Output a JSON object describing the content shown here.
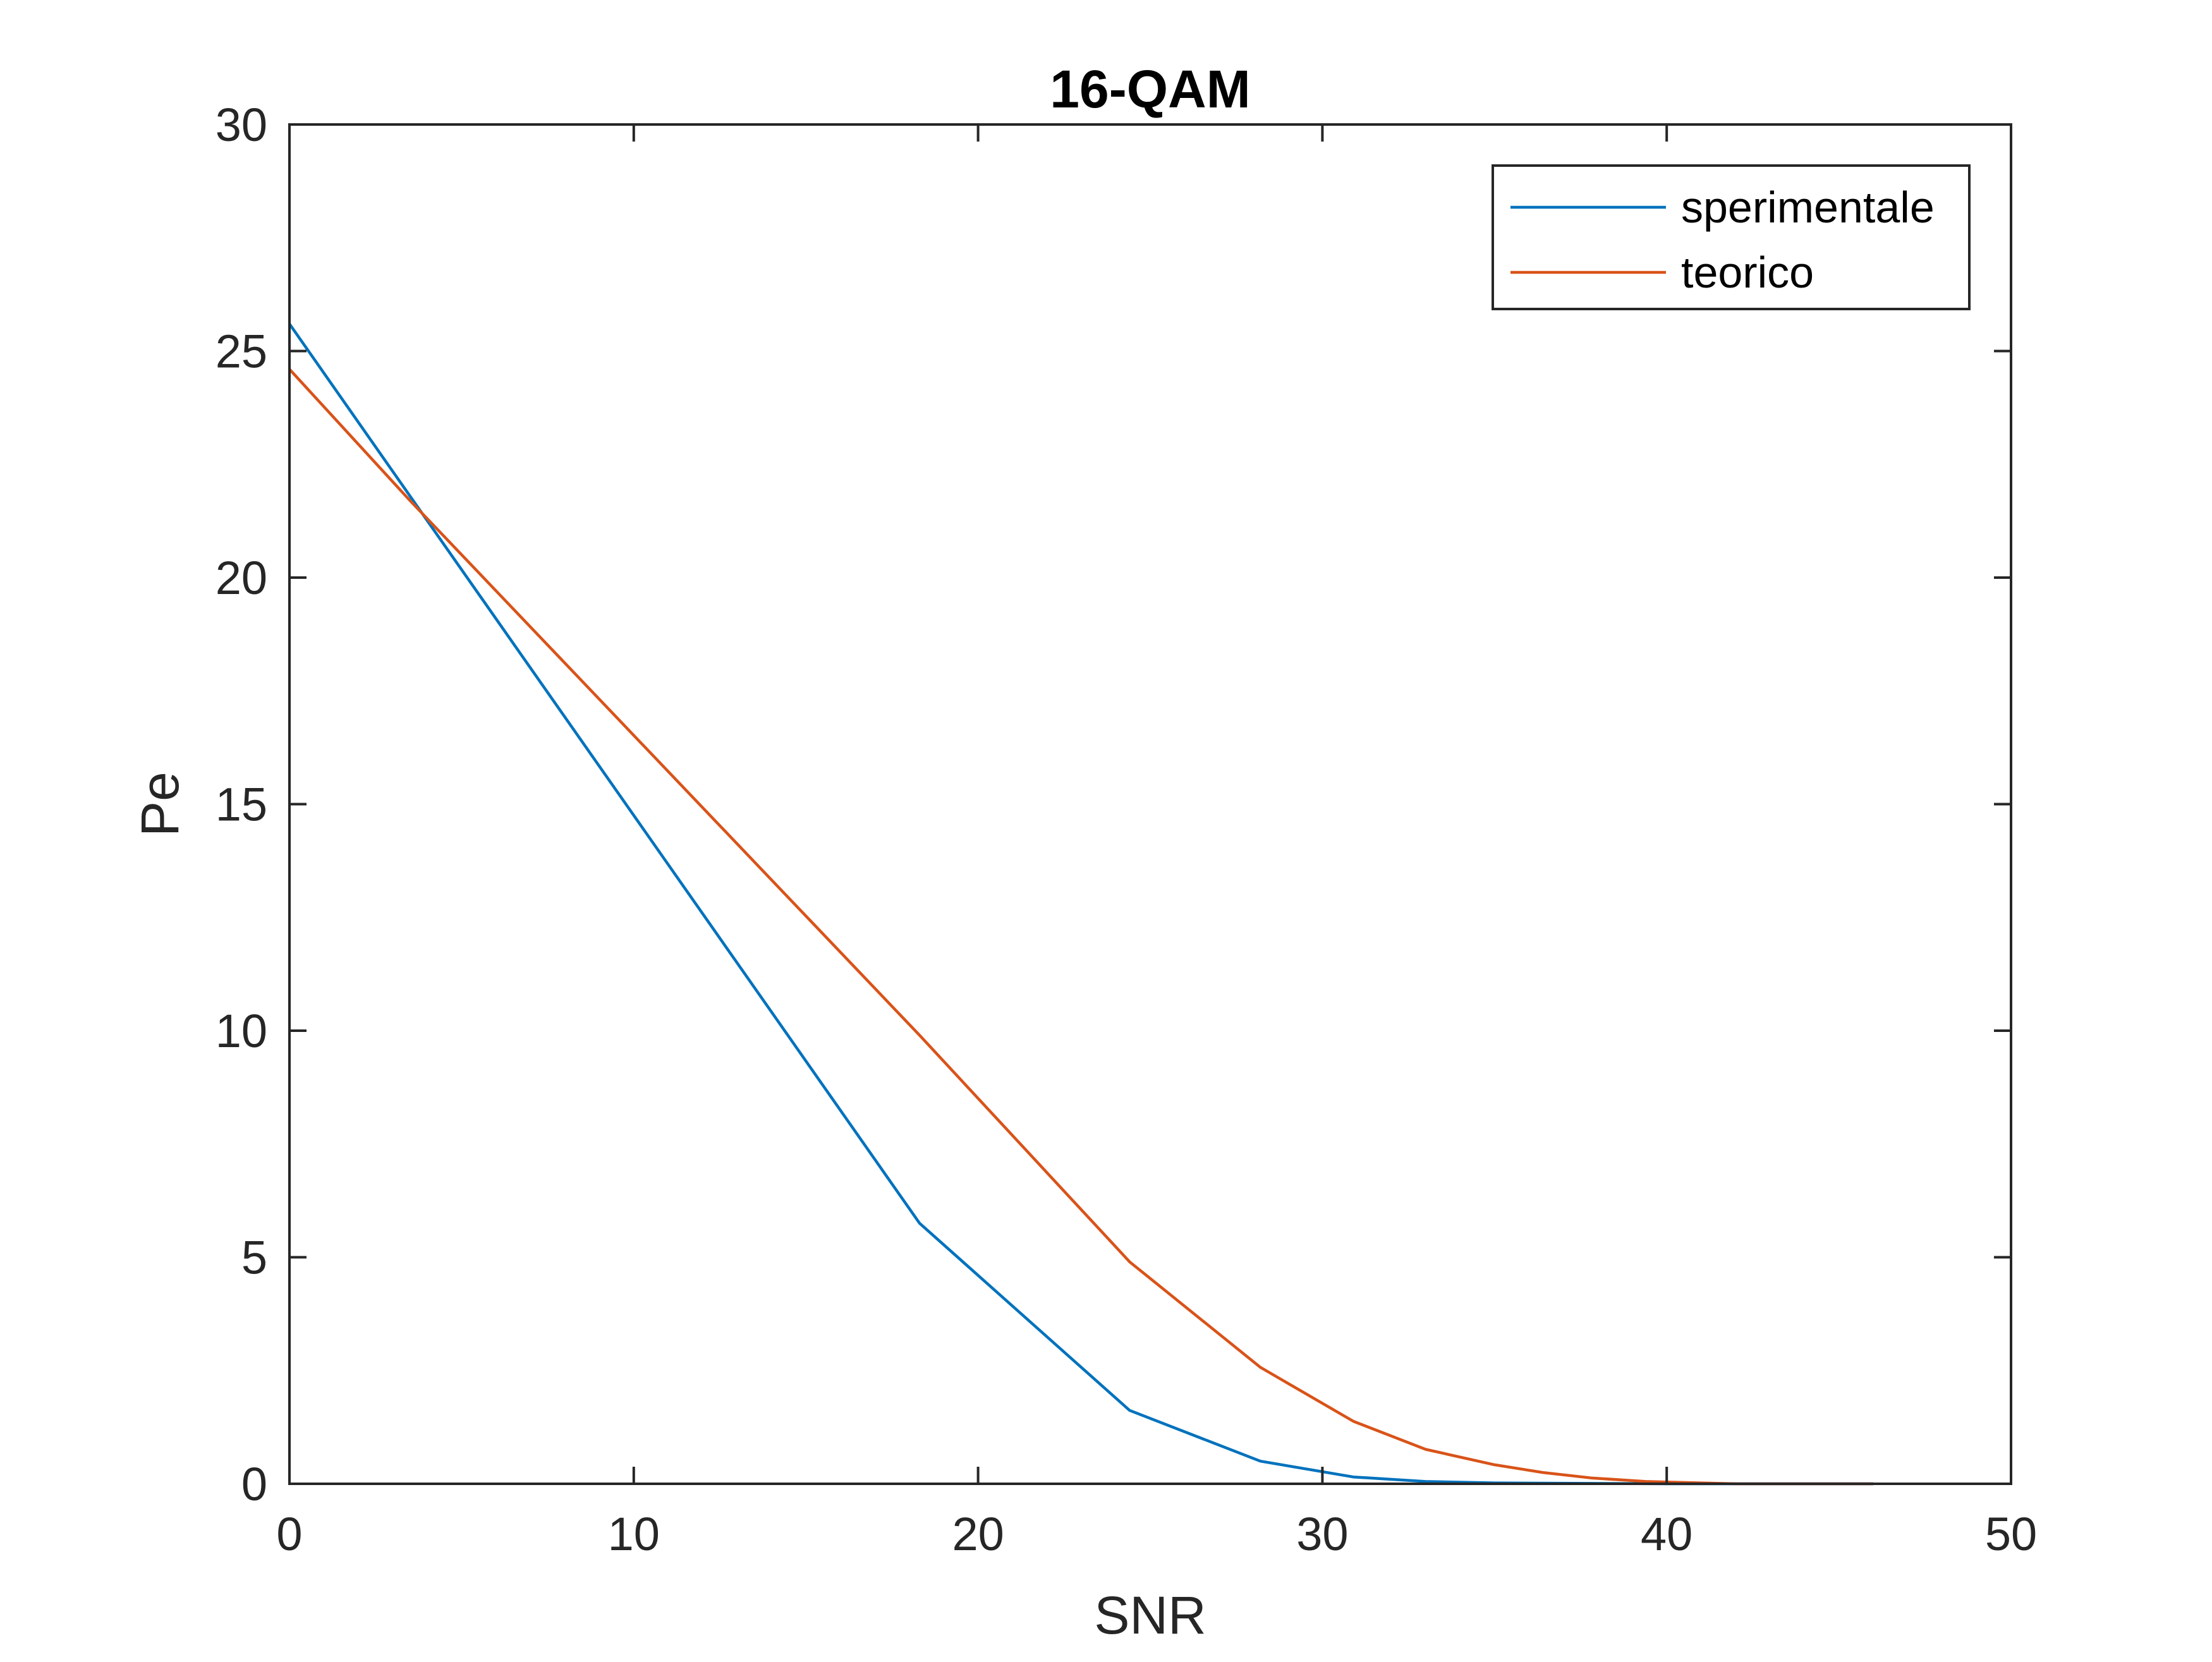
{
  "chart_data": {
    "type": "line",
    "title": "16-QAM",
    "xlabel": "SNR",
    "ylabel": "Pe",
    "xlim": [
      0,
      50
    ],
    "ylim": [
      0,
      30
    ],
    "xticks": [
      0,
      10,
      20,
      30,
      40,
      50
    ],
    "yticks": [
      0,
      5,
      10,
      15,
      20,
      25,
      30
    ],
    "grid": false,
    "legend_position": "top-right",
    "series": [
      {
        "name": "sperimentale",
        "color": "#0072BD",
        "x": [
          0,
          3.5,
          18.3,
          24.4,
          28.2,
          30.9,
          33.0,
          35.0,
          40.0,
          46.0
        ],
        "y": [
          25.6,
          21.8,
          5.75,
          1.62,
          0.5,
          0.15,
          0.05,
          0.02,
          0.0,
          0.0
        ]
      },
      {
        "name": "teorico",
        "color": "#D95319",
        "x": [
          0,
          3.5,
          18.3,
          24.4,
          28.2,
          30.9,
          33.0,
          35.0,
          36.4,
          37.8,
          39.4,
          42.0,
          46.0
        ],
        "y": [
          24.6,
          21.7,
          9.9,
          4.9,
          2.57,
          1.38,
          0.76,
          0.42,
          0.25,
          0.13,
          0.05,
          0.0,
          0.0
        ]
      }
    ]
  }
}
